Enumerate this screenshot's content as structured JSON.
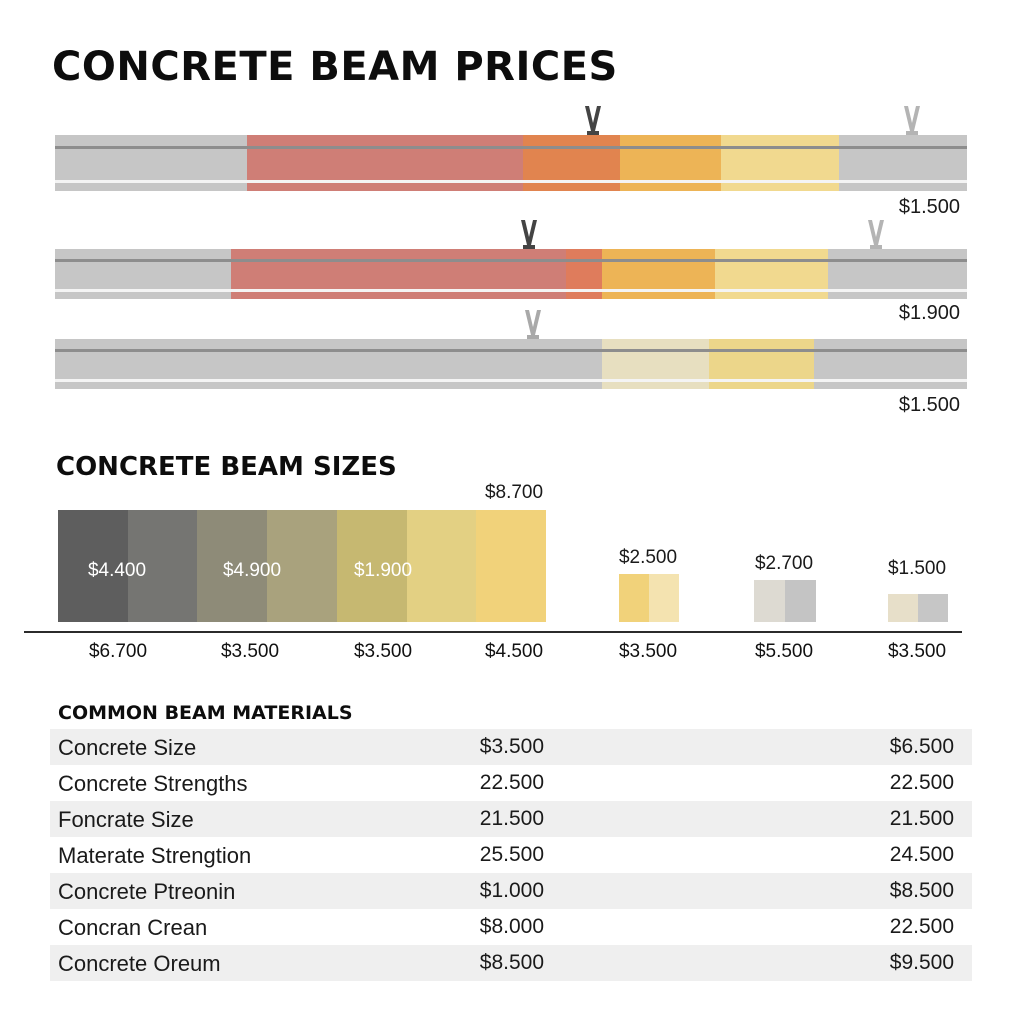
{
  "title": "CONCRETE BEAM PRICES",
  "beams": [
    {
      "price_label": "$1.500",
      "segments": [
        {
          "start": 0.0,
          "end": 0.21,
          "color": "#c6c6c6"
        },
        {
          "start": 0.21,
          "end": 0.513,
          "color": "#cf7e76"
        },
        {
          "start": 0.513,
          "end": 0.62,
          "color": "#e1844f"
        },
        {
          "start": 0.62,
          "end": 0.73,
          "color": "#edb456"
        },
        {
          "start": 0.73,
          "end": 0.86,
          "color": "#f1d98f"
        },
        {
          "start": 0.86,
          "end": 1.0,
          "color": "#c6c6c6"
        }
      ],
      "markers": [
        {
          "pos": 0.59,
          "color": "#444444"
        },
        {
          "pos": 0.94,
          "color": "#b4b4b4"
        }
      ]
    },
    {
      "price_label": "$1.900",
      "segments": [
        {
          "start": 0.0,
          "end": 0.193,
          "color": "#c6c6c6"
        },
        {
          "start": 0.193,
          "end": 0.56,
          "color": "#cf7e76"
        },
        {
          "start": 0.56,
          "end": 0.6,
          "color": "#df7c5c"
        },
        {
          "start": 0.6,
          "end": 0.724,
          "color": "#edb456"
        },
        {
          "start": 0.724,
          "end": 0.848,
          "color": "#f1d98f"
        },
        {
          "start": 0.848,
          "end": 1.0,
          "color": "#c6c6c6"
        }
      ],
      "markers": [
        {
          "pos": 0.52,
          "color": "#444444"
        },
        {
          "pos": 0.9,
          "color": "#b4b4b4"
        }
      ]
    },
    {
      "price_label": "$1.500",
      "segments": [
        {
          "start": 0.0,
          "end": 0.6,
          "color": "#c6c6c6"
        },
        {
          "start": 0.6,
          "end": 0.717,
          "color": "#e7dfc0"
        },
        {
          "start": 0.717,
          "end": 0.832,
          "color": "#ecd68a"
        },
        {
          "start": 0.832,
          "end": 1.0,
          "color": "#c6c6c6"
        }
      ],
      "markers": [
        {
          "pos": 0.524,
          "color": "#a9a9a9"
        }
      ]
    }
  ],
  "sizes_title": "CONCRETE BEAM SIZES",
  "materials_title": "COMMON BEAM MATERIALS",
  "chart_data": {
    "type": "bar",
    "title": "CONCRETE BEAM SIZES",
    "stacked_bar": {
      "top_label": "$8.700",
      "segment_labels": [
        "$4.400",
        "$4.900",
        "$1.900"
      ],
      "segment_colors": [
        "#5e5e5e",
        "#757572",
        "#8e8b78",
        "#a9a27d",
        "#c6b871",
        "#e3d083",
        "#f1d27a"
      ]
    },
    "small_bars": [
      {
        "label": "$2.500",
        "colors": [
          "#f1d27a",
          "#f4e3b0"
        ]
      },
      {
        "label": "$2.700",
        "colors": [
          "#dddad2",
          "#c4c4c4"
        ]
      },
      {
        "label": "$1.500",
        "colors": [
          "#e7dfc9",
          "#c6c6c6"
        ]
      }
    ],
    "tick_labels": [
      "$6.700",
      "$3.500",
      "$3.500",
      "$4.500",
      "$3.500",
      "$5.500",
      "$3.500"
    ]
  },
  "materials": [
    {
      "name": "Concrete Size",
      "v1": "$3.500",
      "v2": "$6.500"
    },
    {
      "name": "Concrete Strengths",
      "v1": "22.500",
      "v2": "22.500"
    },
    {
      "name": "Foncrate Size",
      "v1": "21.500",
      "v2": "21.500"
    },
    {
      "name": "Materate Strengtion",
      "v1": "25.500",
      "v2": "24.500"
    },
    {
      "name": "Concrete Ptreonin",
      "v1": "$1.000",
      "v2": "$8.500"
    },
    {
      "name": "Concran Crean",
      "v1": "$8.000",
      "v2": "22.500"
    },
    {
      "name": "Concrete Oreum",
      "v1": "$8.500",
      "v2": "$9.500"
    }
  ]
}
